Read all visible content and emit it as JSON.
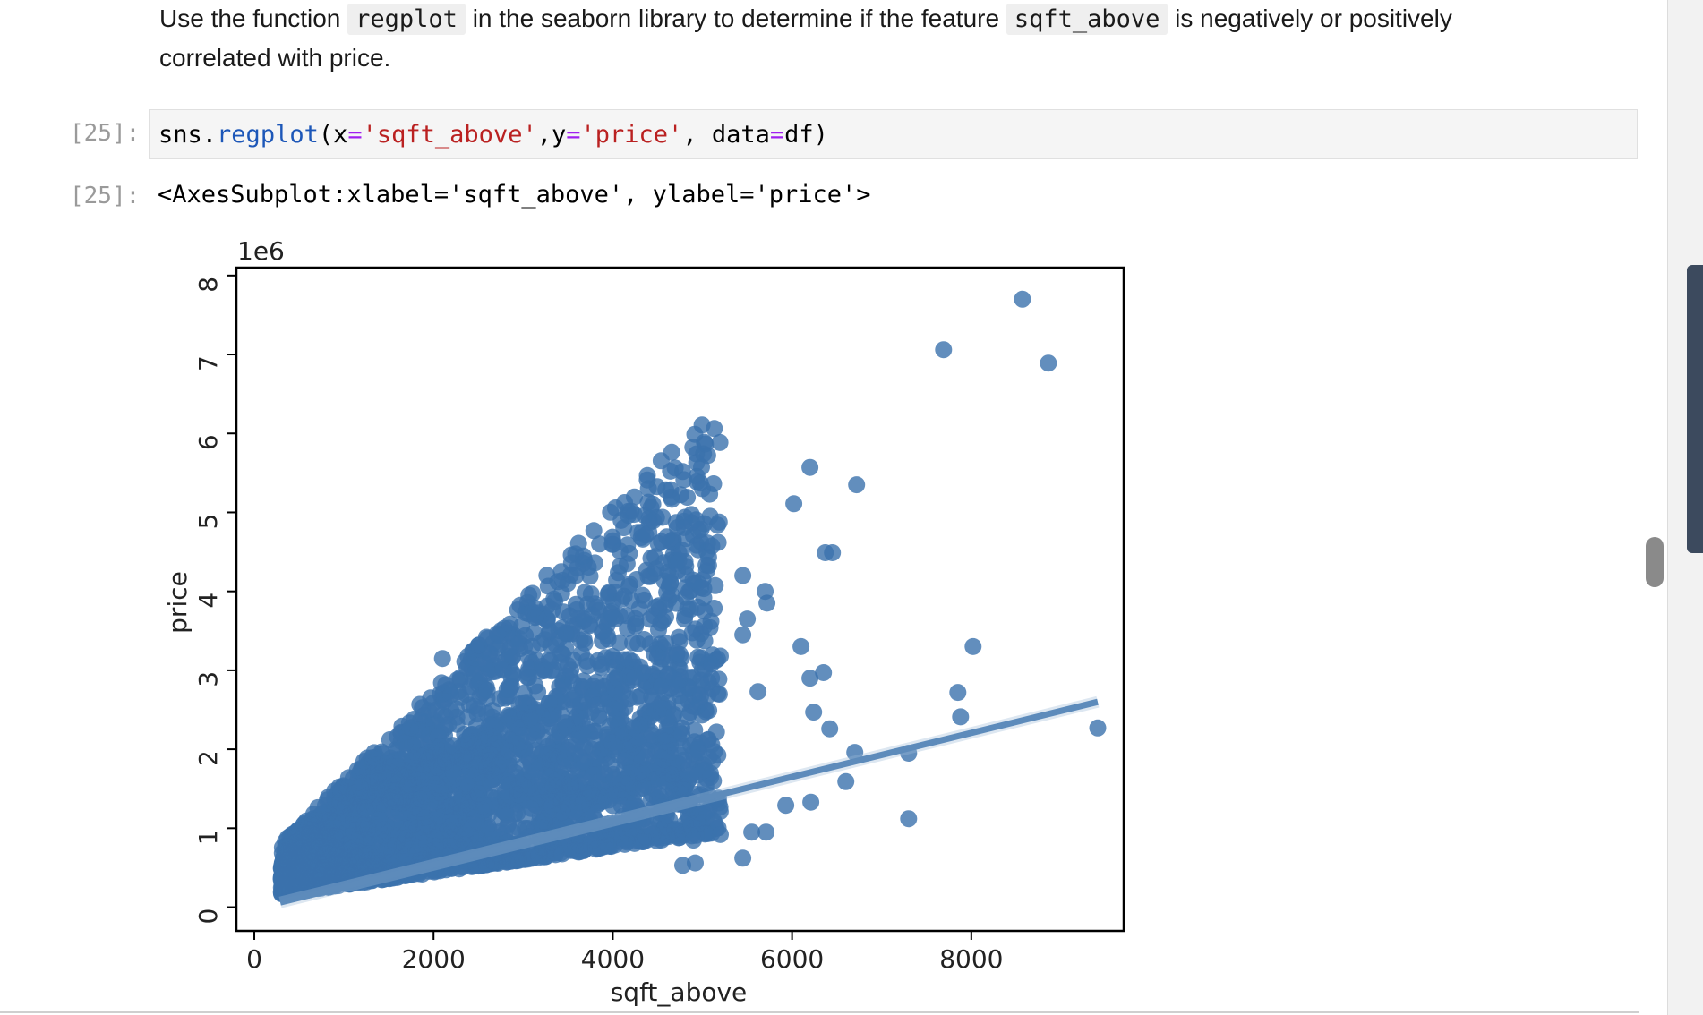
{
  "markdown": {
    "intro": "Use the function",
    "code1": "regplot",
    "mid": "in the seaborn library to determine if the feature",
    "code2": "sqft_above",
    "tail": "is negatively or positively",
    "line2": "correlated with price."
  },
  "cell": {
    "in_prompt": "[25]:",
    "out_prompt": "[25]:",
    "code": {
      "obj": "sns",
      "dot": ".",
      "fn": "regplot",
      "open": "(",
      "x_kw": "x",
      "eq1": "=",
      "x_val": "'sqft_above'",
      "comma1": ",",
      "y_kw": "y",
      "eq2": "=",
      "y_val": "'price'",
      "comma2": ", ",
      "data_kw": "data",
      "eq3": "=",
      "data_val": "df",
      "close": ")"
    },
    "output": "<AxesSubplot:xlabel='sqft_above', ylabel='price'>"
  },
  "chart_data": {
    "type": "scatter",
    "xlabel": "sqft_above",
    "ylabel": "price",
    "y_offset_label": "1e6",
    "xlim": [
      -200,
      9700
    ],
    "ylim": [
      -0.3,
      8.1
    ],
    "xticks": [
      0,
      2000,
      4000,
      6000,
      8000
    ],
    "xtick_labels": [
      "0",
      "2000",
      "4000",
      "6000",
      "8000"
    ],
    "yticks": [
      0,
      1,
      2,
      3,
      4,
      5,
      6,
      7,
      8
    ],
    "ytick_labels": [
      "0",
      "1",
      "2",
      "3",
      "4",
      "5",
      "6",
      "7",
      "8"
    ],
    "grid": false,
    "color": "#3b72ad",
    "regression_line": {
      "x": [
        290,
        9410
      ],
      "y": [
        0.06,
        2.6
      ]
    },
    "outliers": [
      [
        8570,
        7.7
      ],
      [
        7690,
        7.06
      ],
      [
        8860,
        6.89
      ],
      [
        6200,
        5.57
      ],
      [
        6720,
        5.35
      ],
      [
        5000,
        5.3
      ],
      [
        6020,
        5.11
      ],
      [
        4820,
        4.67
      ],
      [
        6370,
        4.49
      ],
      [
        6450,
        4.49
      ],
      [
        5450,
        4.2
      ],
      [
        5700,
        4.0
      ],
      [
        5720,
        3.85
      ],
      [
        5500,
        3.65
      ],
      [
        4950,
        3.8
      ],
      [
        4480,
        3.8
      ],
      [
        4800,
        3.65
      ],
      [
        5450,
        3.45
      ],
      [
        4030,
        3.65
      ],
      [
        3950,
        3.65
      ],
      [
        3770,
        3.7
      ],
      [
        3680,
        3.65
      ],
      [
        3400,
        3.4
      ],
      [
        3100,
        3.3
      ],
      [
        2640,
        3.2
      ],
      [
        2480,
        3.27
      ],
      [
        2100,
        3.15
      ],
      [
        6100,
        3.3
      ],
      [
        8020,
        3.3
      ],
      [
        7850,
        2.72
      ],
      [
        6200,
        2.9
      ],
      [
        6350,
        2.97
      ],
      [
        7880,
        2.41
      ],
      [
        9410,
        2.27
      ],
      [
        6420,
        2.26
      ],
      [
        6240,
        2.47
      ],
      [
        5620,
        2.73
      ],
      [
        4980,
        2.67
      ],
      [
        4750,
        3.2
      ],
      [
        5200,
        3.18
      ],
      [
        5100,
        3.08
      ],
      [
        7300,
        1.95
      ],
      [
        6700,
        1.96
      ],
      [
        6600,
        1.59
      ],
      [
        7300,
        1.12
      ],
      [
        5450,
        0.62
      ],
      [
        4780,
        0.53
      ],
      [
        4920,
        0.56
      ],
      [
        5550,
        0.95
      ],
      [
        5710,
        0.95
      ],
      [
        6210,
        1.33
      ],
      [
        5930,
        1.29
      ],
      [
        4900,
        0.85
      ],
      [
        5200,
        0.92
      ]
    ],
    "cluster": {
      "x_range": [
        300,
        5200
      ],
      "y_base": 0.12,
      "density_note": "dense point mass"
    }
  },
  "colors": {
    "scatter": "#3b72ad",
    "code_function": "#1d57b8",
    "code_operator": "#a020f0",
    "code_string": "#ba2121",
    "prompt": "#9a9a9a"
  }
}
